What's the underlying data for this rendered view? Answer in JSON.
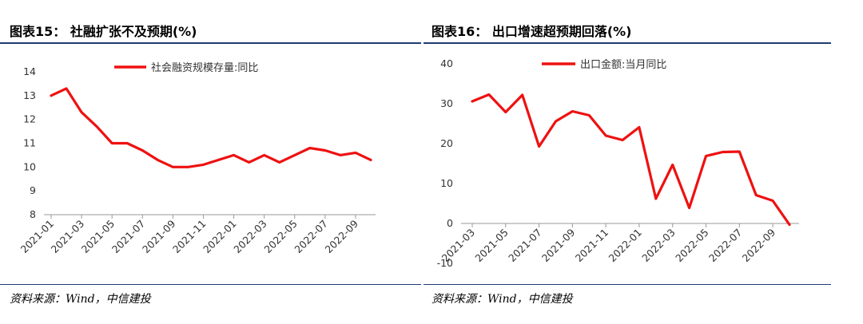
{
  "charts": [
    {
      "title": "图表15： 社融扩张不及预期(%)",
      "source": "资料来源：Wind，中信建投",
      "legend": "社会融资规模存量:同比",
      "color": "#ee1111"
    },
    {
      "title": "图表16： 出口增速超预期回落(%)",
      "source": "资料来源：Wind，中信建投",
      "legend": "出口金额:当月同比",
      "color": "#ee1111"
    }
  ],
  "chart_data": [
    {
      "type": "line",
      "title": "图表15： 社融扩张不及预期(%)",
      "xlabel": "",
      "ylabel": "",
      "ylim": [
        8,
        14
      ],
      "yticks": [
        "8",
        "9",
        "10",
        "11",
        "12",
        "13",
        "14"
      ],
      "xticks": [
        "2021-01",
        "2021-03",
        "2021-05",
        "2021-07",
        "2021-09",
        "2021-11",
        "2022-01",
        "2022-03",
        "2022-05",
        "2022-07",
        "2022-09"
      ],
      "legend_position": "top-center",
      "grid": false,
      "x": [
        "2021-01",
        "2021-02",
        "2021-03",
        "2021-04",
        "2021-05",
        "2021-06",
        "2021-07",
        "2021-08",
        "2021-09",
        "2021-10",
        "2021-11",
        "2021-12",
        "2022-01",
        "2022-02",
        "2022-03",
        "2022-04",
        "2022-05",
        "2022-06",
        "2022-07",
        "2022-08",
        "2022-09",
        "2022-10"
      ],
      "series": [
        {
          "name": "社会融资规模存量:同比",
          "values": [
            13.0,
            13.3,
            12.3,
            11.7,
            11.0,
            11.0,
            10.7,
            10.3,
            10.0,
            10.0,
            10.1,
            10.3,
            10.5,
            10.2,
            10.5,
            10.2,
            10.5,
            10.8,
            10.7,
            10.5,
            10.6,
            10.3
          ]
        }
      ]
    },
    {
      "type": "line",
      "title": "图表16： 出口增速超预期回落(%)",
      "xlabel": "",
      "ylabel": "",
      "ylim": [
        -10,
        40
      ],
      "yticks": [
        "-10",
        "0",
        "10",
        "20",
        "30",
        "40"
      ],
      "xticks": [
        "2021-03",
        "2021-05",
        "2021-07",
        "2021-09",
        "2021-11",
        "2022-01",
        "2022-03",
        "2022-05",
        "2022-07",
        "2022-09"
      ],
      "legend_position": "top-center",
      "grid": false,
      "x": [
        "2021-03",
        "2021-04",
        "2021-05",
        "2021-06",
        "2021-07",
        "2021-08",
        "2021-09",
        "2021-10",
        "2021-11",
        "2021-12",
        "2022-01",
        "2022-02",
        "2022-03",
        "2022-04",
        "2022-05",
        "2022-06",
        "2022-07",
        "2022-08",
        "2022-09",
        "2022-10"
      ],
      "series": [
        {
          "name": "出口金额:当月同比",
          "values": [
            30.6,
            32.3,
            27.9,
            32.2,
            19.3,
            25.6,
            28.1,
            27.1,
            22.0,
            20.9,
            24.1,
            6.2,
            14.7,
            3.9,
            16.9,
            17.9,
            18.0,
            7.1,
            5.7,
            -0.3
          ]
        }
      ]
    }
  ]
}
